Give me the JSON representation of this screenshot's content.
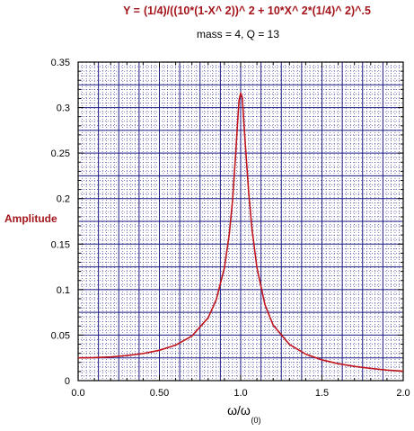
{
  "chart_data": {
    "type": "line",
    "title_prefix": "Y =",
    "title": "(1/4)/((10*(1-X^ 2))^ 2 + 10*X^ 2*(1/4)^ 2)^.5",
    "subtitle": "mass = 4, Q = 13",
    "ylabel": "Amplitude",
    "xlabel_main": "ω/ω",
    "xlabel_sub": "(0)",
    "xlim": [
      0.0,
      2.0
    ],
    "ylim": [
      0,
      0.35
    ],
    "x_ticks": [
      0.0,
      0.5,
      1.0,
      1.5,
      2.0
    ],
    "x_tick_labels": [
      "0.0",
      "0.50",
      "1.0",
      "1.5",
      "2.0"
    ],
    "y_ticks": [
      0,
      0.05,
      0.1,
      0.15,
      0.2,
      0.25,
      0.3,
      0.35
    ],
    "y_tick_labels": [
      "0",
      "0.05",
      "0.1",
      "0.15",
      "0.2",
      "0.25",
      "0.3",
      "0.35"
    ],
    "grid": true,
    "series": [
      {
        "color": "#c0141c",
        "x": [
          0.0,
          0.1,
          0.2,
          0.3,
          0.4,
          0.5,
          0.6,
          0.7,
          0.8,
          0.85,
          0.9,
          0.93,
          0.95,
          0.97,
          0.98,
          0.99,
          1.0,
          1.01,
          1.02,
          1.03,
          1.05,
          1.07,
          1.1,
          1.15,
          1.2,
          1.3,
          1.4,
          1.5,
          1.6,
          1.7,
          1.8,
          1.9,
          2.0
        ],
        "y": [
          0.025,
          0.0253,
          0.026,
          0.0275,
          0.0298,
          0.0333,
          0.039,
          0.049,
          0.069,
          0.089,
          0.124,
          0.161,
          0.198,
          0.251,
          0.281,
          0.308,
          0.316,
          0.311,
          0.283,
          0.256,
          0.205,
          0.166,
          0.124,
          0.083,
          0.061,
          0.0397,
          0.0291,
          0.0228,
          0.0186,
          0.0156,
          0.0134,
          0.0116,
          0.0103
        ]
      }
    ]
  }
}
